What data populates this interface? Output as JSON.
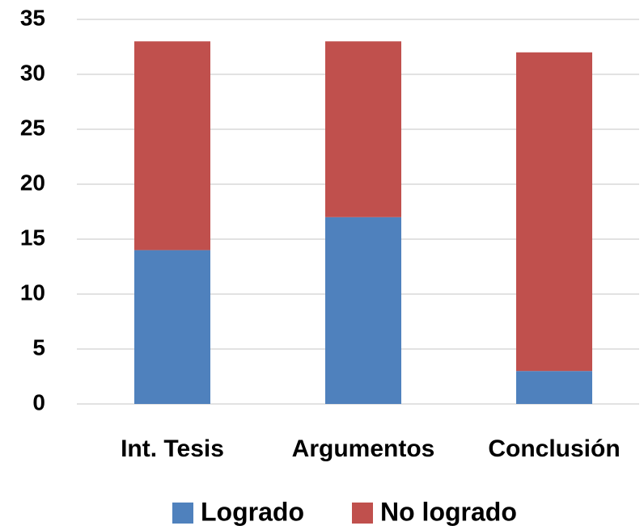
{
  "chart_data": {
    "type": "stacked-bar",
    "categories": [
      "Int. Tesis",
      "Argumentos",
      "Conclusión"
    ],
    "series": [
      {
        "name": "Logrado",
        "color": "#4f81bd",
        "values": [
          14,
          17,
          3
        ]
      },
      {
        "name": "No logrado",
        "color": "#c0504d",
        "values": [
          19,
          16,
          29
        ]
      }
    ],
    "ylim": [
      0,
      35
    ],
    "yticks": [
      0,
      5,
      10,
      15,
      20,
      25,
      30,
      35
    ],
    "grid": true,
    "legend": "bottom"
  }
}
